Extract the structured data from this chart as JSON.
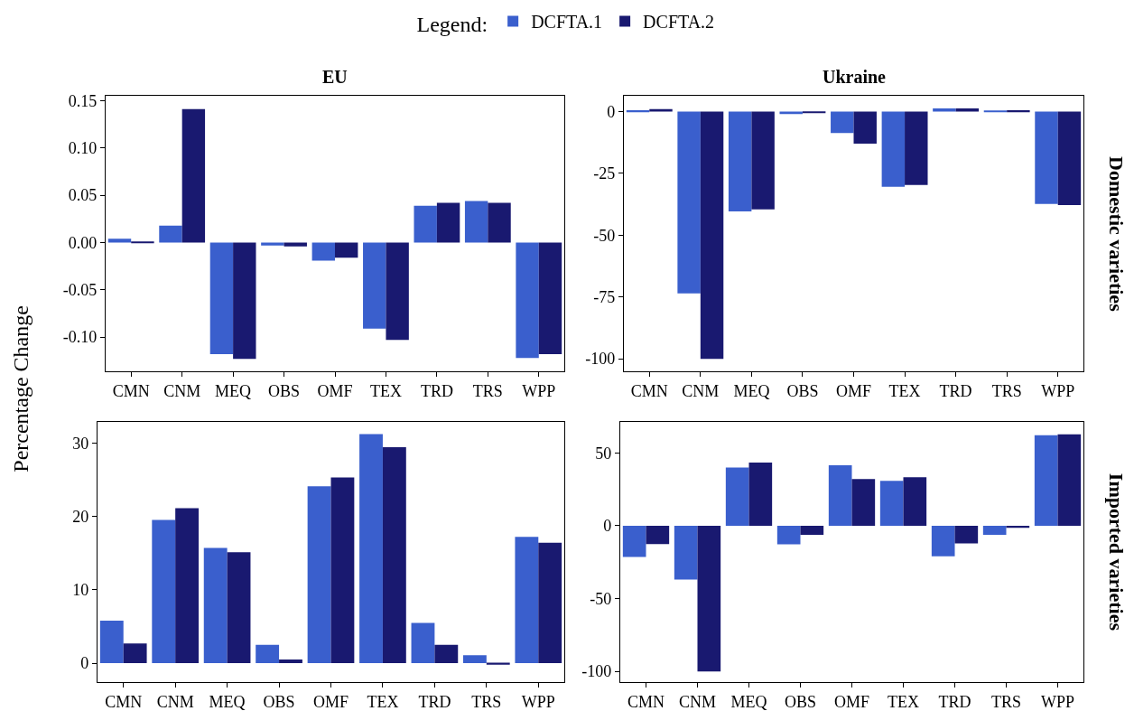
{
  "chart_data": [
    {
      "type": "bar",
      "title": "EU",
      "ylabel": "Percentage Change",
      "legend_title": "Legend:",
      "legend": "top",
      "categories": [
        "CMN",
        "CNM",
        "MEQ",
        "OBS",
        "OMF",
        "TEX",
        "TRD",
        "TRS",
        "WPP"
      ],
      "ylim": [
        -0.136,
        0.155
      ],
      "yticks": [
        {
          "value": -0.1,
          "label": "-0.10"
        },
        {
          "value": -0.05,
          "label": "-0.05"
        },
        {
          "value": 0,
          "label": "0.00"
        },
        {
          "value": 0.05,
          "label": "0.05"
        },
        {
          "value": 0.1,
          "label": "0.10"
        },
        {
          "value": 0.15,
          "label": "0.15"
        }
      ],
      "grid": false,
      "series": [
        {
          "name": "DCFTA.1",
          "color": "#3a5fcd",
          "values": [
            0.004,
            0.018,
            -0.118,
            -0.003,
            -0.019,
            -0.091,
            0.039,
            0.044,
            -0.122
          ]
        },
        {
          "name": "DCFTA.2",
          "color": "#191970",
          "values": [
            0.001,
            0.141,
            -0.123,
            -0.004,
            -0.016,
            -0.103,
            0.042,
            0.042,
            -0.118
          ]
        }
      ]
    },
    {
      "type": "bar",
      "title": "Ukraine",
      "y2label": "Domestic varieties",
      "categories": [
        "CMN",
        "CNM",
        "MEQ",
        "OBS",
        "OMF",
        "TEX",
        "TRD",
        "TRS",
        "WPP"
      ],
      "ylim": [
        -105,
        6.3
      ],
      "yticks": [
        -100,
        -75,
        -50,
        -25,
        0
      ],
      "grid": false,
      "series": [
        {
          "color": "#3a5fcd",
          "values": [
            0.5,
            -73.5,
            -40.4,
            -1,
            -8.7,
            -30.4,
            1.3,
            0.3,
            -37.4
          ]
        },
        {
          "color": "#191970",
          "values": [
            1,
            -100,
            -39.6,
            -0.3,
            -13,
            -29.7,
            1.3,
            0.5,
            -37.8
          ]
        }
      ]
    },
    {
      "type": "bar",
      "categories": [
        "CMN",
        "CNM",
        "MEQ",
        "OBS",
        "OMF",
        "TEX",
        "TRD",
        "TRS",
        "WPP"
      ],
      "ylim": [
        -2.6,
        32.8
      ],
      "yticks": [
        0,
        10,
        20,
        30
      ],
      "grid": false,
      "series": [
        {
          "color": "#3a5fcd",
          "values": [
            5.8,
            19.5,
            15.7,
            2.5,
            24.1,
            31.2,
            5.5,
            1.1,
            17.2
          ]
        },
        {
          "color": "#191970",
          "values": [
            2.7,
            21.1,
            15.1,
            0.5,
            25.3,
            29.4,
            2.5,
            -0.2,
            16.4
          ]
        }
      ]
    },
    {
      "type": "bar",
      "y2label": "Imported varieties",
      "categories": [
        "CMN",
        "CNM",
        "MEQ",
        "OBS",
        "OMF",
        "TEX",
        "TRD",
        "TRS",
        "WPP"
      ],
      "ylim": [
        -107.5,
        71
      ],
      "yticks": [
        -100,
        -50,
        0,
        50
      ],
      "grid": false,
      "series": [
        {
          "color": "#3a5fcd",
          "values": [
            -21.4,
            -37,
            40,
            -12.8,
            41.5,
            30.8,
            -21,
            -6.3,
            62.2
          ]
        },
        {
          "color": "#191970",
          "values": [
            -12.6,
            -100,
            43.4,
            -6.3,
            32,
            33.3,
            -12.1,
            -1.4,
            62.7
          ]
        }
      ]
    }
  ]
}
